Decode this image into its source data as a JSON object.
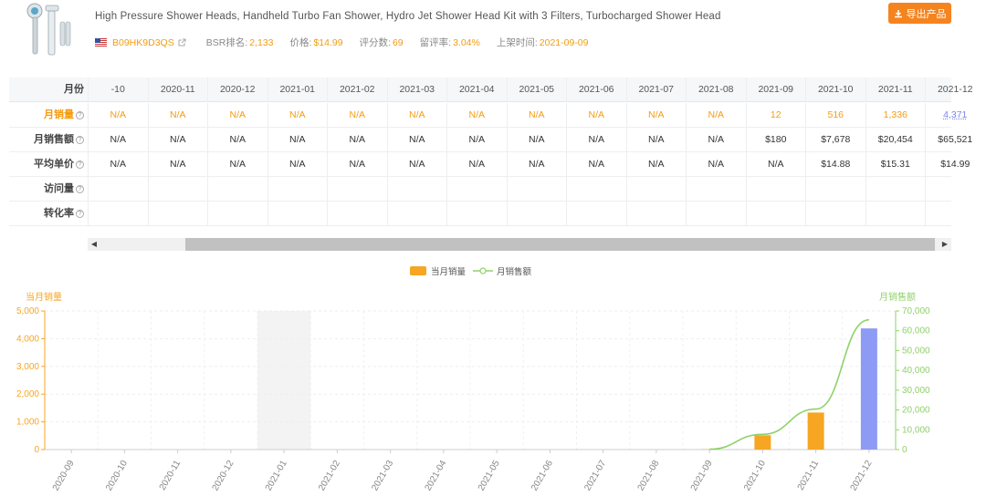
{
  "product": {
    "title": "High Pressure Shower Heads, Handheld Turbo Fan Shower, Hydro Jet Shower Head Kit with 3 Filters, Turbocharged Shower Head",
    "asin": "B09HK9D3QS",
    "bsr_label": "BSR排名:",
    "bsr_value": "2,133",
    "price_label": "价格:",
    "price_value": "$14.99",
    "reviews_label": "评分数:",
    "reviews_value": "69",
    "review_rate_label": "留评率:",
    "review_rate_value": "3.04%",
    "listed_label": "上架时间:",
    "listed_value": "2021-09-09",
    "export_label": "导出产品",
    "icons": {
      "flag": "us-flag-icon",
      "external": "external-link-icon",
      "download": "download-icon"
    }
  },
  "table": {
    "header_label": "月份",
    "months": [
      "-10",
      "2020-11",
      "2020-12",
      "2021-01",
      "2021-02",
      "2021-03",
      "2021-04",
      "2021-05",
      "2021-06",
      "2021-07",
      "2021-08",
      "2021-09",
      "2021-10",
      "2021-11",
      "2021-12"
    ],
    "rows": [
      {
        "label": "月销量",
        "help": "?",
        "style": "orange",
        "values": [
          "N/A",
          "N/A",
          "N/A",
          "N/A",
          "N/A",
          "N/A",
          "N/A",
          "N/A",
          "N/A",
          "N/A",
          "N/A",
          "12",
          "516",
          "1,336",
          "4,371"
        ]
      },
      {
        "label": "月销售额",
        "help": "?",
        "style": "plain",
        "values": [
          "N/A",
          "N/A",
          "N/A",
          "N/A",
          "N/A",
          "N/A",
          "N/A",
          "N/A",
          "N/A",
          "N/A",
          "N/A",
          "$180",
          "$7,678",
          "$20,454",
          "$65,521"
        ]
      },
      {
        "label": "平均单价",
        "help": "?",
        "style": "plain",
        "values": [
          "N/A",
          "N/A",
          "N/A",
          "N/A",
          "N/A",
          "N/A",
          "N/A",
          "N/A",
          "N/A",
          "N/A",
          "N/A",
          "N/A",
          "$14.88",
          "$15.31",
          "$14.99"
        ]
      },
      {
        "label": "访问量",
        "help": "?",
        "style": "plain",
        "values": [
          "",
          "",
          "",
          "",
          "",
          "",
          "",
          "",
          "",
          "",
          "",
          "",
          "",
          "",
          ""
        ]
      },
      {
        "label": "转化率",
        "help": "?",
        "style": "plain",
        "values": [
          "",
          "",
          "",
          "",
          "",
          "",
          "",
          "",
          "",
          "",
          "",
          "",
          "",
          "",
          ""
        ]
      }
    ]
  },
  "scrollbar": {
    "left_arrow": "◀",
    "right_arrow": "▶"
  },
  "chart_data": {
    "type": "bar",
    "legend": [
      {
        "name": "当月销量",
        "color": "#f6a623"
      },
      {
        "name": "月销售额",
        "color": "#8fd16a"
      }
    ],
    "ylabel_left": "当月销量",
    "ylabel_right": "月销售额",
    "categories": [
      "2020-09",
      "2020-10",
      "2020-11",
      "2020-12",
      "2021-01",
      "2021-02",
      "2021-03",
      "2021-04",
      "2021-05",
      "2021-06",
      "2021-07",
      "2021-08",
      "2021-09",
      "2021-10",
      "2021-11",
      "2021-12"
    ],
    "series": [
      {
        "name": "当月销量",
        "type": "bar",
        "axis": "left",
        "values": [
          0,
          0,
          0,
          0,
          0,
          0,
          0,
          0,
          0,
          0,
          0,
          0,
          12,
          516,
          1336,
          4371
        ],
        "highlight_index": 15,
        "highlight_color": "#8e9bf4"
      },
      {
        "name": "月销售额",
        "type": "line",
        "axis": "right",
        "values": [
          null,
          null,
          null,
          null,
          null,
          null,
          null,
          null,
          null,
          null,
          null,
          null,
          180,
          7678,
          20454,
          65521
        ]
      }
    ],
    "ylim_left": [
      0,
      5000
    ],
    "yticks_left": [
      "0",
      "1,000",
      "2,000",
      "3,000",
      "4,000",
      "5,000"
    ],
    "ylim_right": [
      0,
      70000
    ],
    "yticks_right": [
      "0",
      "10,000",
      "20,000",
      "30,000",
      "40,000",
      "50,000",
      "60,000",
      "70,000"
    ],
    "shaded_category": "2021-01",
    "grid": true,
    "legend_position": "top-center"
  }
}
